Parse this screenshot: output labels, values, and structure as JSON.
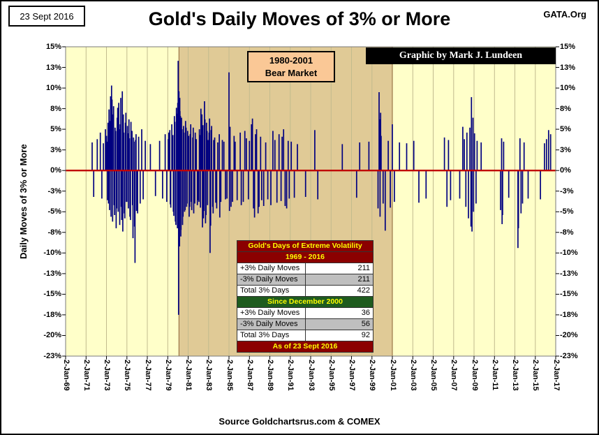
{
  "header": {
    "date": "23 Sept 2016",
    "site": "GATA.Org",
    "title": "Gold's Daily Moves of 3% or More"
  },
  "annotations": {
    "bear_market_box": {
      "line1": "1980-2001",
      "line2": "Bear Market",
      "bg": "#FAC896"
    },
    "credit_banner": {
      "text": "Graphic by Mark J. Lundeen",
      "bg": "#000000",
      "color": "#FFFFFF"
    }
  },
  "stats_table": {
    "title": "Gold's Days of Extreme Volatility",
    "title_bg": "#8B0000",
    "header_text_color": "#FFFF00",
    "sections": [
      {
        "header": "1969 - 2016",
        "header_bg": "#8B0000",
        "rows": [
          {
            "label": "+3% Daily Moves",
            "value": "211",
            "shaded": false
          },
          {
            "label": "-3% Daily Moves",
            "value": "211",
            "shaded": true
          },
          {
            "label": "Total 3% Days",
            "value": "422",
            "shaded": false
          }
        ]
      },
      {
        "header": "Since December 2000",
        "header_bg": "#1E5B1E",
        "rows": [
          {
            "label": "+3% Daily Moves",
            "value": "36",
            "shaded": false
          },
          {
            "label": "-3% Daily Moves",
            "value": "56",
            "shaded": true
          },
          {
            "label": "Total 3% Days",
            "value": "92",
            "shaded": false
          }
        ]
      }
    ],
    "footer": "As of 23 Sept 2016",
    "footer_bg": "#8B0000"
  },
  "footer": {
    "source": "Source Goldchartsrus.com & COMEX"
  },
  "chart_data": {
    "type": "bar",
    "title": "Gold's Daily Moves of 3% or More",
    "ylabel": "Daily Moves of 3% or More",
    "xlabel": "",
    "ylim": [
      -22.5,
      15
    ],
    "xlim": [
      1969,
      2017
    ],
    "plot_bg": "#FFFFC9",
    "bar_color": "#000080",
    "zero_line": {
      "value": 0,
      "color": "#C00000"
    },
    "band": {
      "label": "1980-2001 Bear Market",
      "start": 1980.1,
      "end": 2001,
      "color": "#E0CA96",
      "edge_color": "#8A6134"
    },
    "grid": "vertical gridlines at each 2-year tick",
    "y_ticks": [
      {
        "v": 15,
        "label": "15%"
      },
      {
        "v": 12.5,
        "label": "13%"
      },
      {
        "v": 10,
        "label": "10%"
      },
      {
        "v": 7.5,
        "label": "8%"
      },
      {
        "v": 5,
        "label": "5%"
      },
      {
        "v": 2.5,
        "label": "3%"
      },
      {
        "v": 0,
        "label": "0%"
      },
      {
        "v": -2.5,
        "label": "-3%"
      },
      {
        "v": -5,
        "label": "-5%"
      },
      {
        "v": -7.5,
        "label": "-8%"
      },
      {
        "v": -10,
        "label": "-10%"
      },
      {
        "v": -12.5,
        "label": "-13%"
      },
      {
        "v": -15,
        "label": "-15%"
      },
      {
        "v": -17.5,
        "label": "-18%"
      },
      {
        "v": -20,
        "label": "-20%"
      },
      {
        "v": -22.5,
        "label": "-23%"
      }
    ],
    "x_ticks": [
      {
        "v": 1969,
        "label": "2-Jan-69"
      },
      {
        "v": 1971,
        "label": "2-Jan-71"
      },
      {
        "v": 1973,
        "label": "2-Jan-73"
      },
      {
        "v": 1975,
        "label": "2-Jan-75"
      },
      {
        "v": 1977,
        "label": "2-Jan-77"
      },
      {
        "v": 1979,
        "label": "2-Jan-79"
      },
      {
        "v": 1981,
        "label": "2-Jan-81"
      },
      {
        "v": 1983,
        "label": "2-Jan-83"
      },
      {
        "v": 1985,
        "label": "2-Jan-85"
      },
      {
        "v": 1987,
        "label": "2-Jan-87"
      },
      {
        "v": 1989,
        "label": "2-Jan-89"
      },
      {
        "v": 1991,
        "label": "2-Jan-91"
      },
      {
        "v": 1993,
        "label": "2-Jan-93"
      },
      {
        "v": 1995,
        "label": "2-Jan-95"
      },
      {
        "v": 1997,
        "label": "2-Jan-97"
      },
      {
        "v": 1999,
        "label": "2-Jan-99"
      },
      {
        "v": 2001,
        "label": "2-Jan-01"
      },
      {
        "v": 2003,
        "label": "2-Jan-03"
      },
      {
        "v": 2005,
        "label": "2-Jan-05"
      },
      {
        "v": 2007,
        "label": "2-Jan-07"
      },
      {
        "v": 2009,
        "label": "2-Jan-09"
      },
      {
        "v": 2011,
        "label": "2-Jan-11"
      },
      {
        "v": 2013,
        "label": "2-Jan-13"
      },
      {
        "v": 2015,
        "label": "2-Jan-15"
      },
      {
        "v": 2017,
        "label": "2-Jan-17"
      }
    ],
    "points": [
      [
        1971.6,
        3.4
      ],
      [
        1971.75,
        -3.2
      ],
      [
        1972.1,
        3.8
      ],
      [
        1972.4,
        4.6
      ],
      [
        1972.55,
        -3.4
      ],
      [
        1972.7,
        3.3
      ],
      [
        1972.9,
        5.0
      ],
      [
        1973.0,
        4.2
      ],
      [
        1973.05,
        3.5
      ],
      [
        1973.1,
        -3.6
      ],
      [
        1973.15,
        5.8
      ],
      [
        1973.2,
        -4.0
      ],
      [
        1973.25,
        7.4
      ],
      [
        1973.3,
        -4.8
      ],
      [
        1973.35,
        6.0
      ],
      [
        1973.4,
        9.0
      ],
      [
        1973.45,
        -5.6
      ],
      [
        1973.5,
        10.3
      ],
      [
        1973.55,
        8.6
      ],
      [
        1973.6,
        -6.2
      ],
      [
        1973.65,
        6.8
      ],
      [
        1973.7,
        7.8
      ],
      [
        1973.75,
        -4.2
      ],
      [
        1973.8,
        -5.4
      ],
      [
        1973.85,
        5.2
      ],
      [
        1973.9,
        4.8
      ],
      [
        1973.95,
        -7.0
      ],
      [
        1974.0,
        -4.6
      ],
      [
        1974.05,
        6.4
      ],
      [
        1974.1,
        7.6
      ],
      [
        1974.15,
        -5.0
      ],
      [
        1974.2,
        8.2
      ],
      [
        1974.25,
        5.0
      ],
      [
        1974.3,
        -6.6
      ],
      [
        1974.35,
        5.6
      ],
      [
        1974.4,
        8.8
      ],
      [
        1974.45,
        -4.4
      ],
      [
        1974.5,
        -6.0
      ],
      [
        1974.55,
        9.6
      ],
      [
        1974.6,
        -7.4
      ],
      [
        1974.65,
        6.8
      ],
      [
        1974.7,
        4.6
      ],
      [
        1974.75,
        -5.2
      ],
      [
        1974.8,
        -5.8
      ],
      [
        1974.85,
        5.8
      ],
      [
        1974.9,
        7.0
      ],
      [
        1974.95,
        -3.8
      ],
      [
        1975.0,
        -3.8
      ],
      [
        1975.05,
        5.4
      ],
      [
        1975.1,
        4.5
      ],
      [
        1975.15,
        -4.6
      ],
      [
        1975.2,
        6.2
      ],
      [
        1975.25,
        3.9
      ],
      [
        1975.3,
        -5.6
      ],
      [
        1975.35,
        -6.0
      ],
      [
        1975.4,
        5.9
      ],
      [
        1975.5,
        4.8
      ],
      [
        1975.55,
        -4.2
      ],
      [
        1975.6,
        -8.2
      ],
      [
        1975.65,
        4.0
      ],
      [
        1975.7,
        3.5
      ],
      [
        1975.75,
        -6.8
      ],
      [
        1975.8,
        -11.2
      ],
      [
        1975.85,
        3.7
      ],
      [
        1975.9,
        4.4
      ],
      [
        1975.95,
        -4.9
      ],
      [
        1976.05,
        -5.2
      ],
      [
        1976.15,
        4.1
      ],
      [
        1976.3,
        -4.0
      ],
      [
        1976.45,
        5.0
      ],
      [
        1976.6,
        -3.5
      ],
      [
        1976.8,
        3.6
      ],
      [
        1977.3,
        3.2
      ],
      [
        1977.8,
        -3.1
      ],
      [
        1978.2,
        3.6
      ],
      [
        1978.5,
        -3.4
      ],
      [
        1978.75,
        4.4
      ],
      [
        1978.9,
        -3.8
      ],
      [
        1979.05,
        3.8
      ],
      [
        1979.1,
        4.6
      ],
      [
        1979.2,
        4.9
      ],
      [
        1979.25,
        -4.1
      ],
      [
        1979.3,
        -4.5
      ],
      [
        1979.4,
        5.6
      ],
      [
        1979.5,
        4.3
      ],
      [
        1979.55,
        -5.0
      ],
      [
        1979.6,
        -5.5
      ],
      [
        1979.65,
        6.6
      ],
      [
        1979.7,
        5.9
      ],
      [
        1979.75,
        -6.2
      ],
      [
        1979.8,
        -6.6
      ],
      [
        1979.85,
        7.6
      ],
      [
        1979.9,
        6.9
      ],
      [
        1979.95,
        -7.0
      ],
      [
        1979.98,
        8.2
      ],
      [
        1980.02,
        13.3
      ],
      [
        1980.04,
        7.0
      ],
      [
        1980.06,
        -17.5
      ],
      [
        1980.08,
        -6.0
      ],
      [
        1980.1,
        9.6
      ],
      [
        1980.12,
        5.8
      ],
      [
        1980.15,
        -9.2
      ],
      [
        1980.18,
        8.8
      ],
      [
        1980.2,
        7.2
      ],
      [
        1980.25,
        6.6
      ],
      [
        1980.28,
        -8.0
      ],
      [
        1980.3,
        -7.2
      ],
      [
        1980.35,
        6.4
      ],
      [
        1980.4,
        5.0
      ],
      [
        1980.45,
        -6.6
      ],
      [
        1980.5,
        -5.6
      ],
      [
        1980.55,
        5.4
      ],
      [
        1980.6,
        4.6
      ],
      [
        1980.65,
        -5.0
      ],
      [
        1980.7,
        -4.8
      ],
      [
        1980.75,
        6.0
      ],
      [
        1980.8,
        5.2
      ],
      [
        1980.85,
        -4.4
      ],
      [
        1980.9,
        -4.0
      ],
      [
        1980.95,
        4.8
      ],
      [
        1981.05,
        4.2
      ],
      [
        1981.1,
        -5.6
      ],
      [
        1981.15,
        -4.4
      ],
      [
        1981.2,
        4.4
      ],
      [
        1981.25,
        5.6
      ],
      [
        1981.3,
        -3.8
      ],
      [
        1981.35,
        -4.8
      ],
      [
        1981.45,
        4.0
      ],
      [
        1981.5,
        5.2
      ],
      [
        1981.55,
        -5.2
      ],
      [
        1981.65,
        -4.0
      ],
      [
        1981.7,
        4.6
      ],
      [
        1981.8,
        3.8
      ],
      [
        1981.9,
        -4.2
      ],
      [
        1981.95,
        -3.6
      ],
      [
        1982.05,
        -3.8
      ],
      [
        1982.1,
        5.0
      ],
      [
        1982.15,
        4.3
      ],
      [
        1982.2,
        -4.5
      ],
      [
        1982.25,
        7.5
      ],
      [
        1982.35,
        6.8
      ],
      [
        1982.4,
        -6.9
      ],
      [
        1982.45,
        5.5
      ],
      [
        1982.5,
        -5.8
      ],
      [
        1982.55,
        -4.9
      ],
      [
        1982.6,
        8.4
      ],
      [
        1982.65,
        6.2
      ],
      [
        1982.7,
        -6.4
      ],
      [
        1982.75,
        -5.4
      ],
      [
        1982.8,
        5.8
      ],
      [
        1982.85,
        4.8
      ],
      [
        1982.9,
        -4.2
      ],
      [
        1982.95,
        3.7
      ],
      [
        1983.05,
        4.6
      ],
      [
        1983.1,
        6.3
      ],
      [
        1983.15,
        -10.0
      ],
      [
        1983.2,
        -6.7
      ],
      [
        1983.25,
        4.9
      ],
      [
        1983.3,
        5.4
      ],
      [
        1983.4,
        -4.4
      ],
      [
        1983.45,
        -5.2
      ],
      [
        1983.5,
        3.7
      ],
      [
        1983.6,
        4.0
      ],
      [
        1983.7,
        -3.9
      ],
      [
        1983.8,
        -4.6
      ],
      [
        1983.9,
        3.4
      ],
      [
        1984.05,
        4.4
      ],
      [
        1984.1,
        -5.7
      ],
      [
        1984.2,
        -3.8
      ],
      [
        1984.35,
        3.7
      ],
      [
        1984.5,
        3.5
      ],
      [
        1984.65,
        -3.5
      ],
      [
        1984.8,
        -3.4
      ],
      [
        1985.0,
        11.9
      ],
      [
        1985.05,
        -4.9
      ],
      [
        1985.1,
        5.3
      ],
      [
        1985.2,
        -4.4
      ],
      [
        1985.35,
        -3.8
      ],
      [
        1985.5,
        4.2
      ],
      [
        1985.6,
        3.5
      ],
      [
        1985.8,
        -3.6
      ],
      [
        1986.1,
        4.6
      ],
      [
        1986.2,
        -4.2
      ],
      [
        1986.4,
        -3.8
      ],
      [
        1986.55,
        4.8
      ],
      [
        1986.7,
        3.9
      ],
      [
        1986.9,
        -3.5
      ],
      [
        1987.0,
        3.6
      ],
      [
        1987.2,
        5.6
      ],
      [
        1987.3,
        6.3
      ],
      [
        1987.4,
        -4.6
      ],
      [
        1987.5,
        -5.7
      ],
      [
        1987.6,
        4.4
      ],
      [
        1987.7,
        5.0
      ],
      [
        1987.85,
        -5.2
      ],
      [
        1987.95,
        -4.4
      ],
      [
        1988.1,
        4.1
      ],
      [
        1988.2,
        -3.6
      ],
      [
        1988.4,
        -4.3
      ],
      [
        1988.6,
        3.4
      ],
      [
        1988.8,
        -3.5
      ],
      [
        1989.1,
        -4.2
      ],
      [
        1989.3,
        4.8
      ],
      [
        1989.5,
        3.7
      ],
      [
        1989.7,
        -3.9
      ],
      [
        1989.9,
        4.4
      ],
      [
        1990.1,
        -3.7
      ],
      [
        1990.2,
        4.1
      ],
      [
        1990.35,
        5.0
      ],
      [
        1990.5,
        -4.3
      ],
      [
        1990.65,
        -4.6
      ],
      [
        1990.8,
        3.6
      ],
      [
        1990.9,
        -3.4
      ],
      [
        1991.1,
        3.5
      ],
      [
        1991.4,
        -3.3
      ],
      [
        1991.7,
        3.2
      ],
      [
        1992.5,
        -3.2
      ],
      [
        1993.4,
        4.9
      ],
      [
        1993.7,
        -3.5
      ],
      [
        1996.1,
        3.2
      ],
      [
        1997.5,
        -3.3
      ],
      [
        1997.8,
        3.4
      ],
      [
        1998.7,
        3.5
      ],
      [
        1999.6,
        -4.6
      ],
      [
        1999.7,
        9.5
      ],
      [
        1999.75,
        6.2
      ],
      [
        1999.8,
        -5.6
      ],
      [
        1999.85,
        7.0
      ],
      [
        1999.9,
        4.2
      ],
      [
        2000.1,
        -4.0
      ],
      [
        2000.3,
        -7.3
      ],
      [
        2000.6,
        3.6
      ],
      [
        2000.8,
        -4.5
      ],
      [
        2001.0,
        5.6
      ],
      [
        2001.2,
        -3.8
      ],
      [
        2001.7,
        3.4
      ],
      [
        2002.4,
        3.3
      ],
      [
        2003.1,
        3.6
      ],
      [
        2003.6,
        -3.9
      ],
      [
        2004.3,
        -3.4
      ],
      [
        2006.1,
        4.0
      ],
      [
        2006.35,
        -4.4
      ],
      [
        2006.5,
        3.7
      ],
      [
        2006.7,
        -3.6
      ],
      [
        2007.6,
        -3.4
      ],
      [
        2007.9,
        5.3
      ],
      [
        2008.05,
        3.8
      ],
      [
        2008.2,
        -4.4
      ],
      [
        2008.3,
        4.6
      ],
      [
        2008.45,
        -5.8
      ],
      [
        2008.6,
        5.2
      ],
      [
        2008.7,
        -6.8
      ],
      [
        2008.75,
        8.9
      ],
      [
        2008.8,
        -7.4
      ],
      [
        2008.9,
        6.4
      ],
      [
        2008.95,
        -5.0
      ],
      [
        2009.05,
        4.5
      ],
      [
        2009.2,
        -4.0
      ],
      [
        2009.3,
        3.6
      ],
      [
        2009.7,
        3.4
      ],
      [
        2011.6,
        -4.8
      ],
      [
        2011.7,
        3.9
      ],
      [
        2011.75,
        -6.5
      ],
      [
        2011.8,
        -5.4
      ],
      [
        2011.9,
        3.5
      ],
      [
        2012.4,
        -3.3
      ],
      [
        2013.3,
        -9.4
      ],
      [
        2013.35,
        -7.0
      ],
      [
        2013.5,
        3.9
      ],
      [
        2013.6,
        -5.2
      ],
      [
        2013.75,
        -4.0
      ],
      [
        2013.9,
        3.4
      ],
      [
        2014.3,
        -3.4
      ],
      [
        2015.5,
        -3.5
      ],
      [
        2015.9,
        3.3
      ],
      [
        2016.1,
        3.8
      ],
      [
        2016.3,
        4.9
      ],
      [
        2016.5,
        4.4
      ]
    ]
  }
}
